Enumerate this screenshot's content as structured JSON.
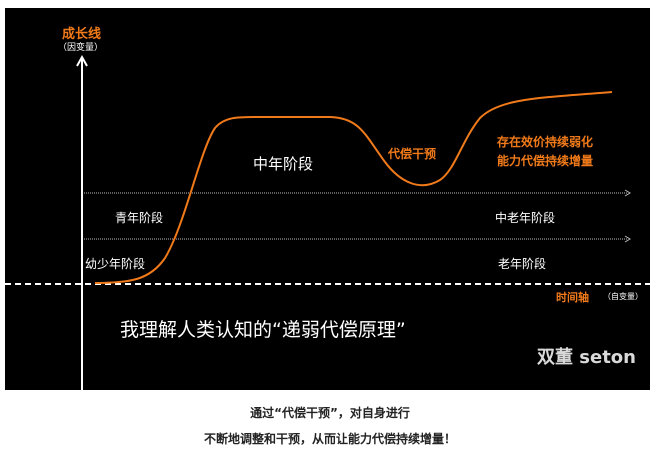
{
  "diagram": {
    "y_axis": {
      "title": "成长线",
      "subtitle": "（因变量）"
    },
    "x_axis": {
      "title": "时间轴",
      "subtitle": "（自变量）"
    },
    "stages": [
      "幼少年阶段",
      "青年阶段",
      "中年阶段",
      "中老年阶段",
      "老年阶段"
    ],
    "annotations": {
      "intervention": "代偿干预",
      "right_line1": "存在效价持续弱化",
      "right_line2": "能力代偿持续增量"
    },
    "headline": "我理解人类认知的“递弱代偿原理”",
    "watermark": "双董 seton",
    "colors": {
      "curve": "#f07a1a",
      "background": "#000000",
      "text": "#ffffff"
    }
  },
  "caption": {
    "line1": "通过“代偿干预”，对自身进行",
    "line2": "不断地调整和干预，从而让能力代偿持续增量！"
  }
}
